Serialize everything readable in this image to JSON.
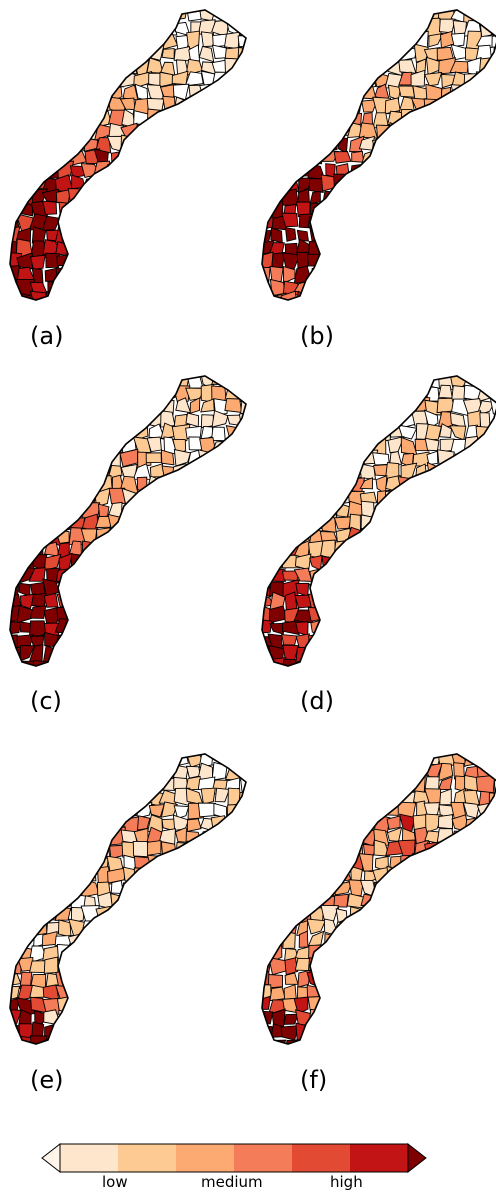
{
  "panels": [
    {
      "label": "(a)",
      "intensity": [
        0.95,
        0.92,
        0.85,
        0.7,
        0.45,
        0.3,
        0.2,
        0.15
      ]
    },
    {
      "label": "(b)",
      "intensity": [
        0.7,
        0.95,
        0.98,
        0.8,
        0.45,
        0.35,
        0.25,
        0.2
      ]
    },
    {
      "label": "(c)",
      "intensity": [
        0.98,
        0.95,
        0.8,
        0.55,
        0.4,
        0.3,
        0.2,
        0.25
      ]
    },
    {
      "label": "(d)",
      "intensity": [
        0.9,
        0.8,
        0.55,
        0.45,
        0.35,
        0.3,
        0.2,
        0.15
      ]
    },
    {
      "label": "(e)",
      "intensity": [
        0.98,
        0.45,
        0.3,
        0.25,
        0.3,
        0.35,
        0.25,
        0.15
      ]
    },
    {
      "label": "(f)",
      "intensity": [
        0.95,
        0.55,
        0.45,
        0.4,
        0.45,
        0.55,
        0.35,
        0.4
      ]
    }
  ],
  "legend": {
    "colors": [
      "#fee6cd",
      "#fdca94",
      "#fca972",
      "#f57c59",
      "#e34a33",
      "#c21315"
    ],
    "under_color": "#fff5eb",
    "over_color": "#7f0000",
    "labels": [
      "low",
      "medium",
      "high"
    ]
  }
}
